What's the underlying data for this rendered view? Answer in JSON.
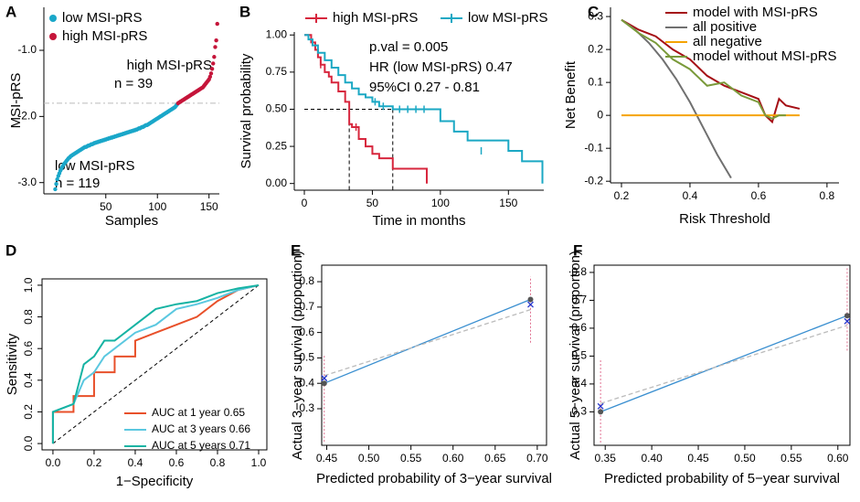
{
  "chart_data": [
    {
      "type": "scatter",
      "panel_label": "A",
      "ylabel": "MSI-pRS",
      "xlabel": "Samples",
      "legend": "upper left",
      "xlim": [
        -10,
        160
      ],
      "xticks": [
        50,
        100,
        150
      ],
      "ylim": [
        -3.17,
        -0.35
      ],
      "yticks": [
        {
          "value": -3,
          "label": "-3.0"
        },
        {
          "value": -2,
          "label": "-2.0"
        },
        {
          "value": -1,
          "label": "-1.0"
        }
      ],
      "cutoff": -1.8,
      "annotations": [
        "high MSI-pRS",
        "n = 39",
        "low MSI-pRS",
        "n = 119"
      ],
      "series": [
        {
          "name": "low MSI-pRS",
          "color": "#1aa7c9",
          "x": [
            1,
            2,
            3,
            4,
            5,
            6,
            7,
            8,
            9,
            10,
            11,
            12,
            13,
            14,
            15,
            16,
            17,
            18,
            19,
            20,
            21,
            22,
            23,
            24,
            25,
            26,
            27,
            28,
            29,
            30,
            31,
            32,
            33,
            34,
            35,
            36,
            37,
            38,
            39,
            40,
            41,
            42,
            43,
            44,
            45,
            46,
            47,
            48,
            49,
            50,
            51,
            52,
            53,
            54,
            55,
            56,
            57,
            58,
            59,
            60,
            61,
            62,
            63,
            64,
            65,
            66,
            67,
            68,
            69,
            70,
            71,
            72,
            73,
            74,
            75,
            76,
            77,
            78,
            79,
            80,
            81,
            82,
            83,
            84,
            85,
            86,
            87,
            88,
            89,
            90,
            91,
            92,
            93,
            94,
            95,
            96,
            97,
            98,
            99,
            100,
            101,
            102,
            103,
            104,
            105,
            106,
            107,
            108,
            109,
            110,
            111,
            112,
            113,
            114,
            115,
            116,
            117,
            118,
            119
          ],
          "values": [
            -3.1,
            -3.02,
            -2.95,
            -2.9,
            -2.86,
            -2.82,
            -2.79,
            -2.76,
            -2.73,
            -2.71,
            -2.69,
            -2.67,
            -2.65,
            -2.63,
            -2.62,
            -2.6,
            -2.59,
            -2.58,
            -2.57,
            -2.56,
            -2.55,
            -2.54,
            -2.53,
            -2.52,
            -2.51,
            -2.5,
            -2.49,
            -2.48,
            -2.47,
            -2.46,
            -2.46,
            -2.45,
            -2.44,
            -2.44,
            -2.43,
            -2.42,
            -2.42,
            -2.41,
            -2.4,
            -2.4,
            -2.39,
            -2.39,
            -2.38,
            -2.38,
            -2.37,
            -2.37,
            -2.36,
            -2.36,
            -2.35,
            -2.35,
            -2.34,
            -2.34,
            -2.33,
            -2.33,
            -2.32,
            -2.32,
            -2.31,
            -2.31,
            -2.3,
            -2.3,
            -2.29,
            -2.29,
            -2.28,
            -2.28,
            -2.27,
            -2.27,
            -2.26,
            -2.26,
            -2.25,
            -2.25,
            -2.24,
            -2.24,
            -2.23,
            -2.23,
            -2.22,
            -2.22,
            -2.21,
            -2.21,
            -2.2,
            -2.2,
            -2.19,
            -2.18,
            -2.18,
            -2.17,
            -2.16,
            -2.16,
            -2.15,
            -2.14,
            -2.13,
            -2.13,
            -2.12,
            -2.11,
            -2.1,
            -2.09,
            -2.08,
            -2.07,
            -2.06,
            -2.05,
            -2.04,
            -2.03,
            -2.02,
            -2.01,
            -2.0,
            -1.99,
            -1.98,
            -1.97,
            -1.96,
            -1.95,
            -1.94,
            -1.93,
            -1.92,
            -1.91,
            -1.9,
            -1.89,
            -1.88,
            -1.87,
            -1.86,
            -1.84,
            -1.82
          ]
        },
        {
          "name": "high MSI-pRS",
          "color": "#c5153a",
          "x": [
            120,
            121,
            122,
            123,
            124,
            125,
            126,
            127,
            128,
            129,
            130,
            131,
            132,
            133,
            134,
            135,
            136,
            137,
            138,
            139,
            140,
            141,
            142,
            143,
            144,
            145,
            146,
            147,
            148,
            149,
            150,
            151,
            152,
            153,
            154,
            155,
            156,
            157,
            158
          ],
          "values": [
            -1.8,
            -1.79,
            -1.78,
            -1.77,
            -1.76,
            -1.75,
            -1.74,
            -1.73,
            -1.72,
            -1.71,
            -1.7,
            -1.69,
            -1.68,
            -1.67,
            -1.66,
            -1.65,
            -1.64,
            -1.63,
            -1.62,
            -1.61,
            -1.6,
            -1.59,
            -1.58,
            -1.57,
            -1.56,
            -1.54,
            -1.52,
            -1.5,
            -1.48,
            -1.46,
            -1.44,
            -1.4,
            -1.35,
            -1.28,
            -1.2,
            -1.1,
            -0.95,
            -0.85,
            -0.6
          ]
        }
      ]
    },
    {
      "type": "step",
      "panel_label": "B",
      "ylabel": "Survival probability",
      "xlabel": "Time in months",
      "legend": "top",
      "xlim": [
        -7.4,
        176
      ],
      "xticks": [
        0,
        50,
        100,
        150
      ],
      "ylim": [
        -0.045,
        1.02
      ],
      "yticks": [
        {
          "value": 0,
          "label": "0.00"
        },
        {
          "value": 0.25,
          "label": "0.25"
        },
        {
          "value": 0.5,
          "label": "0.50"
        },
        {
          "value": 0.75,
          "label": "0.75"
        },
        {
          "value": 1,
          "label": "1.00"
        }
      ],
      "annotations": [
        "p.val = 0.005",
        "HR (low MSI-pRS)  0.47",
        "95%CI  0.27 - 0.81"
      ],
      "median_level": 0.5,
      "median_times": [
        33,
        65
      ],
      "series": [
        {
          "name": "high MSI-pRS",
          "color": "#d7263d",
          "x": [
            0,
            5,
            8,
            10,
            12,
            15,
            18,
            20,
            25,
            30,
            33,
            35,
            40,
            45,
            50,
            55,
            65,
            90
          ],
          "values": [
            1,
            0.95,
            0.9,
            0.85,
            0.8,
            0.75,
            0.72,
            0.68,
            0.62,
            0.55,
            0.4,
            0.38,
            0.3,
            0.25,
            0.2,
            0.17,
            0.1,
            0
          ],
          "censor_x": [
            12,
            38
          ],
          "censor_y": [
            0.8,
            0.38
          ]
        },
        {
          "name": "low MSI-pRS",
          "color": "#1ba8c4",
          "x": [
            0,
            3,
            6,
            10,
            15,
            20,
            25,
            30,
            35,
            40,
            45,
            50,
            55,
            65,
            100,
            110,
            120,
            150,
            160,
            175
          ],
          "values": [
            1,
            0.97,
            0.93,
            0.88,
            0.83,
            0.78,
            0.73,
            0.68,
            0.64,
            0.6,
            0.58,
            0.55,
            0.52,
            0.5,
            0.42,
            0.35,
            0.29,
            0.22,
            0.15,
            0
          ],
          "censor_x": [
            52,
            58,
            70,
            76,
            82,
            88,
            130
          ],
          "censor_y": [
            0.55,
            0.52,
            0.5,
            0.5,
            0.5,
            0.5,
            0.22
          ]
        }
      ]
    },
    {
      "type": "line",
      "panel_label": "C",
      "ylabel": "Net Benefit",
      "xlabel": "Risk Threshold",
      "legend": "upper right",
      "xlim": [
        0.168,
        0.835
      ],
      "xticks": [
        0.2,
        0.4,
        0.6,
        0.8
      ],
      "ylim": [
        -0.205,
        0.328
      ],
      "yticks": [
        -0.2,
        -0.1,
        0,
        0.1,
        0.2,
        0.3
      ],
      "series": [
        {
          "name": "model with MSI-pRS",
          "color": "#a50f15",
          "x": [
            0.2,
            0.25,
            0.3,
            0.35,
            0.4,
            0.45,
            0.5,
            0.55,
            0.6,
            0.62,
            0.64,
            0.66,
            0.68,
            0.72
          ],
          "values": [
            0.29,
            0.26,
            0.24,
            0.2,
            0.17,
            0.12,
            0.09,
            0.07,
            0.05,
            0,
            -0.02,
            0.05,
            0.03,
            0.02
          ]
        },
        {
          "name": "all positive",
          "color": "#707070",
          "x": [
            0.2,
            0.24,
            0.28,
            0.32,
            0.36,
            0.4,
            0.44,
            0.48,
            0.52
          ],
          "values": [
            0.29,
            0.26,
            0.22,
            0.17,
            0.11,
            0.04,
            -0.04,
            -0.12,
            -0.19
          ]
        },
        {
          "name": "all negative",
          "color": "#f5a300",
          "x": [
            0.2,
            0.72
          ],
          "values": [
            0,
            0
          ]
        },
        {
          "name": "model without MSI-pRS",
          "color": "#7a9a3a",
          "x": [
            0.2,
            0.25,
            0.3,
            0.35,
            0.4,
            0.45,
            0.5,
            0.55,
            0.6,
            0.62,
            0.64,
            0.66,
            0.68
          ],
          "values": [
            0.29,
            0.25,
            0.22,
            0.17,
            0.14,
            0.09,
            0.1,
            0.06,
            0.04,
            0,
            -0.01,
            0,
            0
          ]
        }
      ]
    },
    {
      "type": "line",
      "panel_label": "D",
      "ylabel": "Sensitivity",
      "xlabel": "1−Specificity",
      "legend": "lower right",
      "box": true,
      "xlim": [
        -0.053,
        1.04
      ],
      "xticks": [
        {
          "value": 0,
          "label": "0.0"
        },
        0.2,
        0.4,
        0.6,
        0.8,
        {
          "value": 1,
          "label": "1.0"
        }
      ],
      "ylim": [
        -0.04,
        1.04
      ],
      "yticks": [
        {
          "value": 0,
          "label": "0.0"
        },
        0.2,
        0.4,
        0.6,
        0.8,
        {
          "value": 1,
          "label": "1.0"
        }
      ],
      "series": [
        {
          "name": "AUC at 1 year 0.65",
          "color": "#e8502a",
          "x": [
            0,
            0,
            0.1,
            0.1,
            0.2,
            0.2,
            0.3,
            0.3,
            0.4,
            0.4,
            0.5,
            0.6,
            0.7,
            0.8,
            0.9,
            1
          ],
          "values": [
            0,
            0.2,
            0.2,
            0.3,
            0.3,
            0.45,
            0.45,
            0.55,
            0.55,
            0.65,
            0.7,
            0.75,
            0.8,
            0.9,
            0.97,
            1
          ]
        },
        {
          "name": "AUC at 3 years 0.66",
          "color": "#5bc8e0",
          "x": [
            0,
            0,
            0.1,
            0.15,
            0.2,
            0.25,
            0.3,
            0.4,
            0.5,
            0.6,
            0.7,
            0.8,
            0.9,
            1
          ],
          "values": [
            0,
            0.2,
            0.25,
            0.4,
            0.45,
            0.55,
            0.6,
            0.7,
            0.75,
            0.85,
            0.88,
            0.92,
            0.97,
            1
          ]
        },
        {
          "name": "AUC at 5 years 0.71",
          "color": "#16b3a3",
          "x": [
            0,
            0,
            0.1,
            0.15,
            0.2,
            0.25,
            0.3,
            0.4,
            0.5,
            0.6,
            0.7,
            0.8,
            0.9,
            1
          ],
          "values": [
            0,
            0.2,
            0.25,
            0.5,
            0.55,
            0.65,
            0.65,
            0.75,
            0.85,
            0.88,
            0.9,
            0.95,
            0.98,
            1
          ]
        }
      ]
    },
    {
      "type": "calibration",
      "panel_label": "E",
      "ylabel": "Actual 3−year survival (proportion)",
      "xlabel": "Predicted probability of 3−year survival",
      "box": true,
      "xlim": [
        0.444,
        0.711
      ],
      "xticks": [
        0.45,
        {
          "value": 0.5,
          "label": "0.50"
        },
        0.55,
        {
          "value": 0.6,
          "label": "0.60"
        },
        0.65,
        {
          "value": 0.7,
          "label": "0.70"
        }
      ],
      "ylim": [
        0.156,
        0.865
      ],
      "yticks": [
        0.3,
        0.4,
        0.5,
        0.6,
        0.7,
        0.8
      ],
      "errorbar_color": "#e07090",
      "observed": {
        "color": "#555555",
        "x": [
          0.447,
          0.692
        ],
        "values": [
          0.4,
          0.73
        ],
        "lower": [
          0.17,
          0.56
        ],
        "upper": [
          0.51,
          0.82
        ]
      },
      "corrected": {
        "color": "#2233cc",
        "x": [
          0.447,
          0.692
        ],
        "values": [
          0.42,
          0.71
        ]
      },
      "lines": [
        {
          "color": "#3a8fd0",
          "dash": false,
          "x": [
            0.447,
            0.692
          ],
          "values": [
            0.4,
            0.73
          ]
        },
        {
          "color": "#bbbbbb",
          "dash": true,
          "x": [
            0.447,
            0.692
          ],
          "values": [
            0.43,
            0.69
          ]
        }
      ]
    },
    {
      "type": "calibration",
      "panel_label": "F",
      "ylabel": "Actual 5−year survival (proportion)",
      "xlabel": "Predicted probability of 5−year survival",
      "box": true,
      "xlim": [
        0.338,
        0.613
      ],
      "xticks": [
        0.35,
        {
          "value": 0.4,
          "label": "0.40"
        },
        0.45,
        {
          "value": 0.5,
          "label": "0.50"
        },
        0.55,
        {
          "value": 0.6,
          "label": "0.60"
        }
      ],
      "ylim": [
        0.18,
        0.826
      ],
      "yticks": [
        0.3,
        0.4,
        0.5,
        0.6,
        0.7,
        0.8
      ],
      "errorbar_color": "#e07090",
      "observed": {
        "color": "#555555",
        "x": [
          0.345,
          0.61
        ],
        "values": [
          0.3,
          0.645
        ],
        "lower": [
          0.19,
          0.52
        ],
        "upper": [
          0.49,
          0.82
        ]
      },
      "corrected": {
        "color": "#2233cc",
        "x": [
          0.345,
          0.61
        ],
        "values": [
          0.32,
          0.625
        ]
      },
      "lines": [
        {
          "color": "#3a8fd0",
          "dash": false,
          "x": [
            0.345,
            0.61
          ],
          "values": [
            0.3,
            0.645
          ]
        },
        {
          "color": "#bbbbbb",
          "dash": true,
          "x": [
            0.345,
            0.61
          ],
          "values": [
            0.33,
            0.61
          ]
        }
      ]
    }
  ]
}
